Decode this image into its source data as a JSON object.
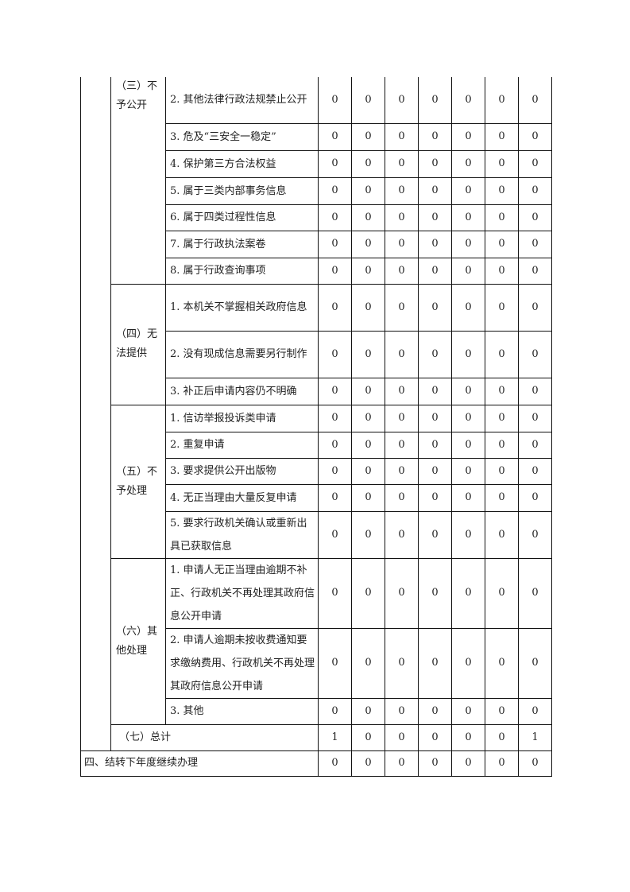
{
  "groups": [
    {
      "label": "（三）不予公开",
      "label_align": "top",
      "items": [
        {
          "label": "2. 其他法律行政法规禁止公开",
          "values": [
            "0",
            "0",
            "0",
            "0",
            "0",
            "0",
            "0"
          ]
        },
        {
          "label": "3. 危及“三安全一稳定”",
          "values": [
            "0",
            "0",
            "0",
            "0",
            "0",
            "0",
            "0"
          ]
        },
        {
          "label": "4. 保护第三方合法权益",
          "values": [
            "0",
            "0",
            "0",
            "0",
            "0",
            "0",
            "0"
          ]
        },
        {
          "label": "5. 属于三类内部事务信息",
          "values": [
            "0",
            "0",
            "0",
            "0",
            "0",
            "0",
            "0"
          ]
        },
        {
          "label": "6. 属于四类过程性信息",
          "values": [
            "0",
            "0",
            "0",
            "0",
            "0",
            "0",
            "0"
          ]
        },
        {
          "label": "7. 属于行政执法案卷",
          "values": [
            "0",
            "0",
            "0",
            "0",
            "0",
            "0",
            "0"
          ]
        },
        {
          "label": "8. 属于行政查询事项",
          "values": [
            "0",
            "0",
            "0",
            "0",
            "0",
            "0",
            "0"
          ]
        }
      ]
    },
    {
      "label": "（四）无法提供",
      "label_align": "middle",
      "items": [
        {
          "label": "1. 本机关不掌握相关政府信息",
          "values": [
            "0",
            "0",
            "0",
            "0",
            "0",
            "0",
            "0"
          ]
        },
        {
          "label": "2. 没有现成信息需要另行制作",
          "values": [
            "0",
            "0",
            "0",
            "0",
            "0",
            "0",
            "0"
          ]
        },
        {
          "label": "3. 补正后申请内容仍不明确",
          "values": [
            "0",
            "0",
            "0",
            "0",
            "0",
            "0",
            "0"
          ]
        }
      ]
    },
    {
      "label": "（五）不予处理",
      "label_align": "middle",
      "items": [
        {
          "label": "1. 信访举报投诉类申请",
          "values": [
            "0",
            "0",
            "0",
            "0",
            "0",
            "0",
            "0"
          ]
        },
        {
          "label": "2. 重复申请",
          "values": [
            "0",
            "0",
            "0",
            "0",
            "0",
            "0",
            "0"
          ]
        },
        {
          "label": "3. 要求提供公开出版物",
          "values": [
            "0",
            "0",
            "0",
            "0",
            "0",
            "0",
            "0"
          ]
        },
        {
          "label": "4. 无正当理由大量反复申请",
          "values": [
            "0",
            "0",
            "0",
            "0",
            "0",
            "0",
            "0"
          ]
        },
        {
          "label": "5. 要求行政机关确认或重新出具已获取信息",
          "values": [
            "0",
            "0",
            "0",
            "0",
            "0",
            "0",
            "0"
          ]
        }
      ]
    },
    {
      "label": "（六）其他处理",
      "label_align": "middle",
      "items": [
        {
          "label": "1. 申请人无正当理由逾期不补正、行政机关不再处理其政府信息公开申请",
          "values": [
            "0",
            "0",
            "0",
            "0",
            "0",
            "0",
            "0"
          ]
        },
        {
          "label": "2. 申请人逾期未按收费通知要求缴纳费用、行政机关不再处理其政府信息公开申请",
          "values": [
            "0",
            "0",
            "0",
            "0",
            "0",
            "0",
            "0"
          ]
        },
        {
          "label": "3. 其他",
          "values": [
            "0",
            "0",
            "0",
            "0",
            "0",
            "0",
            "0"
          ]
        }
      ]
    }
  ],
  "total": {
    "label": "（七）总计",
    "values": [
      "1",
      "0",
      "0",
      "0",
      "0",
      "0",
      "1"
    ]
  },
  "carryover": {
    "label": "四、结转下年度继续办理",
    "values": [
      "0",
      "0",
      "0",
      "0",
      "0",
      "0",
      "0"
    ]
  }
}
